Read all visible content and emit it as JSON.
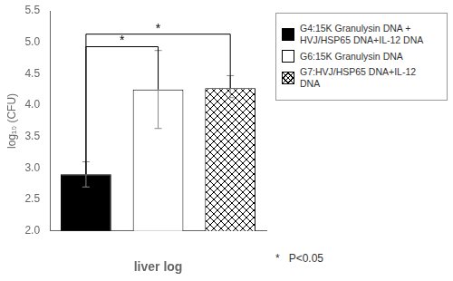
{
  "chart_data": {
    "type": "bar",
    "categories": [
      null,
      null,
      null
    ],
    "series": [
      {
        "name": "G4:15K Granulysin DNA +\nHVJ/HSP65 DNA+IL-12 DNA",
        "color": "black",
        "values": [
          2.9,
          null,
          null
        ],
        "errors_up": [
          0.2,
          null,
          null
        ],
        "errors_down": [
          0.2,
          null,
          null
        ]
      },
      {
        "name": "G6:15K Granulysin DNA",
        "color": "white",
        "values": [
          null,
          4.25,
          null
        ],
        "errors_up": [
          null,
          0.62,
          null
        ],
        "errors_down": [
          null,
          0.62,
          null
        ]
      },
      {
        "name": "G7:HVJ/HSP65 DNA+IL-12\nDNA",
        "color": "white",
        "marker": "crosshatch",
        "values": [
          null,
          null,
          4.27
        ],
        "errors_up": [
          null,
          null,
          0.2
        ],
        "errors_down": [
          null,
          null,
          0.15
        ]
      }
    ],
    "ylim": [
      2.0,
      5.5
    ],
    "yticks": [
      {
        "value": 2.0,
        "label": "2.0"
      },
      2.5,
      {
        "value": 3.0,
        "label": "3.0"
      },
      3.5,
      {
        "value": 4.0,
        "label": "4.0"
      },
      4.5,
      {
        "value": 5.0,
        "label": "5.0"
      },
      5.5
    ],
    "ylabel": "log₁₀ (CFU)",
    "xlabel": "liver log",
    "grid": false,
    "legend": "right",
    "significance": [
      {
        "pair": [
          0,
          1
        ],
        "y": 4.93,
        "label": "*"
      },
      {
        "pair": [
          0,
          2
        ],
        "y": 5.13,
        "label": "*"
      }
    ],
    "annotation": "*   P<0.05"
  }
}
